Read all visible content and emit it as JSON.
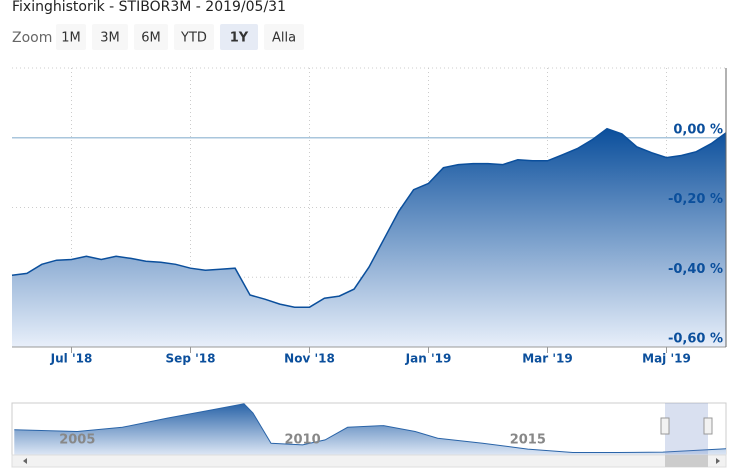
{
  "chart_data": {
    "type": "area",
    "title": "Fixinghistorik - STIBOR3M - 2019/05/31",
    "zoom_label": "Zoom",
    "zoom_buttons": [
      "1M",
      "3M",
      "6M",
      "YTD",
      "1Y",
      "Alla"
    ],
    "selected_button": "1Y",
    "color": "#0b4f9c",
    "categories": [
      null,
      null,
      null,
      null,
      "Jul '18",
      null,
      null,
      null,
      null,
      null,
      null,
      null,
      "Sep '18",
      null,
      null,
      null,
      null,
      null,
      null,
      null,
      "Nov '18",
      null,
      null,
      null,
      null,
      null,
      null,
      null,
      "Jan '19",
      null,
      null,
      null,
      null,
      null,
      null,
      null,
      "Mar '19",
      null,
      null,
      null,
      null,
      null,
      null,
      null,
      "Maj '19",
      null,
      null,
      null,
      null
    ],
    "values": [
      -0.394,
      -0.389,
      -0.363,
      -0.351,
      -0.349,
      -0.34,
      -0.349,
      -0.34,
      -0.346,
      -0.354,
      -0.357,
      -0.363,
      -0.374,
      -0.38,
      -0.377,
      -0.374,
      -0.451,
      -0.463,
      -0.477,
      -0.486,
      -0.486,
      -0.46,
      -0.454,
      -0.434,
      -0.371,
      -0.291,
      -0.211,
      -0.149,
      -0.131,
      -0.086,
      -0.077,
      -0.074,
      -0.074,
      -0.077,
      -0.063,
      -0.066,
      -0.066,
      -0.049,
      -0.031,
      -0.006,
      0.026,
      0.011,
      -0.026,
      -0.043,
      -0.057,
      -0.051,
      -0.04,
      -0.017,
      0.014
    ],
    "ylim": [
      -0.6,
      0.2
    ],
    "yticks": [
      {
        "value": 0,
        "label": "0,00 %"
      },
      {
        "value": -0.2,
        "label": "-0,20 %"
      },
      {
        "value": -0.4,
        "label": "-0,40 %"
      },
      {
        "value": -0.6,
        "label": "-0,60 %"
      }
    ],
    "grid": true,
    "navigator": {
      "x": [
        2003.6,
        2005,
        2006,
        2007,
        2008,
        2008.7,
        2008.9,
        2009.3,
        2010,
        2010.5,
        2011,
        2011.8,
        2012.5,
        2013,
        2014,
        2015,
        2016,
        2017,
        2018,
        2019.4
      ],
      "values": [
        2.2,
        2.0,
        2.5,
        3.6,
        4.6,
        5.3,
        4.2,
        0.6,
        0.4,
        1.0,
        2.5,
        2.7,
        2.0,
        1.2,
        0.6,
        -0.1,
        -0.5,
        -0.5,
        -0.45,
        -0.05
      ],
      "xlim": [
        2003.55,
        2019.4
      ],
      "ylim": [
        -0.8,
        5.4
      ],
      "xticks": [
        2005,
        2010,
        2015
      ]
    }
  }
}
